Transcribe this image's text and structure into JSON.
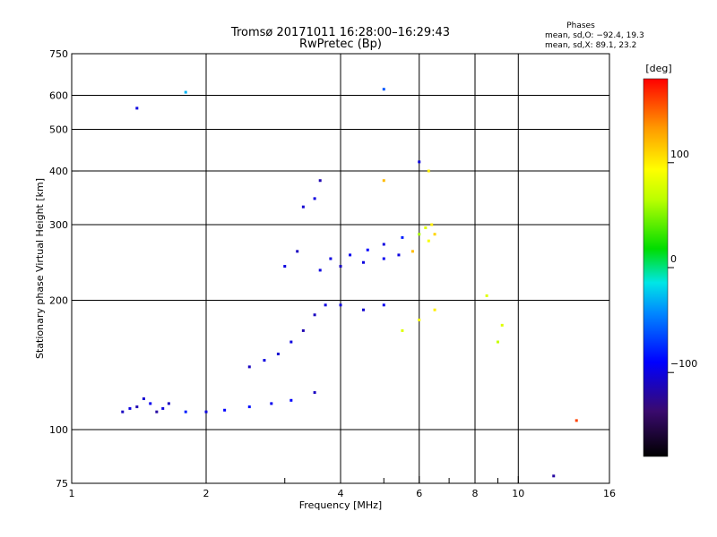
{
  "chart_data": {
    "type": "scatter",
    "title": "Tromsø 20171011 16:28:00–16:29:43",
    "subtitle": "RwPretec (Bp)",
    "xlabel": "Frequency [MHz]",
    "ylabel": "Stationary phase Virtual Height [km]",
    "x_scale": "log",
    "y_scale": "log",
    "xlim": [
      1,
      16
    ],
    "ylim": [
      75,
      750
    ],
    "xticks": [
      1,
      2,
      4,
      6,
      8,
      10,
      16
    ],
    "yticks": [
      75,
      100,
      200,
      300,
      400,
      500,
      600,
      750
    ],
    "xgrid": [
      2,
      4,
      6,
      8,
      10
    ],
    "ygrid": [
      100,
      200,
      300,
      400,
      500,
      600
    ],
    "xminor": [
      3,
      5,
      7,
      9
    ],
    "grid": true,
    "stats": {
      "heading": "Phases",
      "line_o": "mean, sd,O: −92.4, 19.3",
      "line_x": "mean, sd,X:  89.1, 23.2"
    },
    "colorbar": {
      "label": "[deg]",
      "range": [
        -180,
        180
      ],
      "ticks": [
        100,
        0,
        -100
      ],
      "tick_labels": [
        "100",
        "0",
        "−100"
      ]
    },
    "series": [
      {
        "values": [
          {
            "x": 1.3,
            "y": 110,
            "p": -110
          },
          {
            "x": 1.35,
            "y": 112,
            "p": -100
          },
          {
            "x": 1.4,
            "y": 113,
            "p": -115
          },
          {
            "x": 1.45,
            "y": 118,
            "p": -105
          },
          {
            "x": 1.5,
            "y": 115,
            "p": -95
          },
          {
            "x": 1.55,
            "y": 110,
            "p": -120
          },
          {
            "x": 1.6,
            "y": 112,
            "p": -100
          },
          {
            "x": 1.65,
            "y": 115,
            "p": -110
          },
          {
            "x": 1.8,
            "y": 110,
            "p": -80
          },
          {
            "x": 2.0,
            "y": 110,
            "p": -100
          },
          {
            "x": 2.2,
            "y": 111,
            "p": -90
          },
          {
            "x": 2.5,
            "y": 113,
            "p": -85
          },
          {
            "x": 2.8,
            "y": 115,
            "p": -95
          },
          {
            "x": 3.1,
            "y": 117,
            "p": -90
          },
          {
            "x": 3.5,
            "y": 122,
            "p": -110
          },
          {
            "x": 2.5,
            "y": 140,
            "p": -110
          },
          {
            "x": 2.7,
            "y": 145,
            "p": -100
          },
          {
            "x": 2.9,
            "y": 150,
            "p": -105
          },
          {
            "x": 3.1,
            "y": 160,
            "p": -100
          },
          {
            "x": 3.3,
            "y": 170,
            "p": -115
          },
          {
            "x": 3.5,
            "y": 185,
            "p": -110
          },
          {
            "x": 3.7,
            "y": 195,
            "p": -100
          },
          {
            "x": 4.0,
            "y": 195,
            "p": -100
          },
          {
            "x": 4.5,
            "y": 190,
            "p": -105
          },
          {
            "x": 5.0,
            "y": 195,
            "p": -95
          },
          {
            "x": 3.0,
            "y": 240,
            "p": -100
          },
          {
            "x": 3.2,
            "y": 260,
            "p": -110
          },
          {
            "x": 3.3,
            "y": 330,
            "p": -105
          },
          {
            "x": 3.5,
            "y": 345,
            "p": -100
          },
          {
            "x": 3.6,
            "y": 380,
            "p": -115
          },
          {
            "x": 3.8,
            "y": 250,
            "p": -100
          },
          {
            "x": 4.2,
            "y": 255,
            "p": -95
          },
          {
            "x": 4.6,
            "y": 262,
            "p": -90
          },
          {
            "x": 5.0,
            "y": 270,
            "p": -100
          },
          {
            "x": 5.5,
            "y": 280,
            "p": -80
          },
          {
            "x": 6.0,
            "y": 285,
            "p": 60
          },
          {
            "x": 6.2,
            "y": 295,
            "p": 80
          },
          {
            "x": 6.4,
            "y": 300,
            "p": 100
          },
          {
            "x": 3.6,
            "y": 235,
            "p": -100
          },
          {
            "x": 4.0,
            "y": 240,
            "p": -110
          },
          {
            "x": 4.5,
            "y": 245,
            "p": -100
          },
          {
            "x": 5.0,
            "y": 250,
            "p": -95
          },
          {
            "x": 5.4,
            "y": 255,
            "p": -100
          },
          {
            "x": 5.8,
            "y": 260,
            "p": 120
          },
          {
            "x": 6.3,
            "y": 275,
            "p": 90
          },
          {
            "x": 6.5,
            "y": 285,
            "p": 110
          },
          {
            "x": 5.5,
            "y": 170,
            "p": 80
          },
          {
            "x": 6.0,
            "y": 180,
            "p": 90
          },
          {
            "x": 6.5,
            "y": 190,
            "p": 100
          },
          {
            "x": 8.5,
            "y": 205,
            "p": 80
          },
          {
            "x": 9.0,
            "y": 160,
            "p": 70
          },
          {
            "x": 9.2,
            "y": 175,
            "p": 80
          },
          {
            "x": 6.0,
            "y": 420,
            "p": -100
          },
          {
            "x": 6.3,
            "y": 400,
            "p": 100
          },
          {
            "x": 5.0,
            "y": 380,
            "p": 120
          },
          {
            "x": 13.5,
            "y": 105,
            "p": 160
          },
          {
            "x": 12,
            "y": 78,
            "p": -120
          },
          {
            "x": 1.4,
            "y": 560,
            "p": -100
          },
          {
            "x": 1.8,
            "y": 610,
            "p": -30
          },
          {
            "x": 5.0,
            "y": 620,
            "p": -60
          }
        ]
      }
    ]
  }
}
